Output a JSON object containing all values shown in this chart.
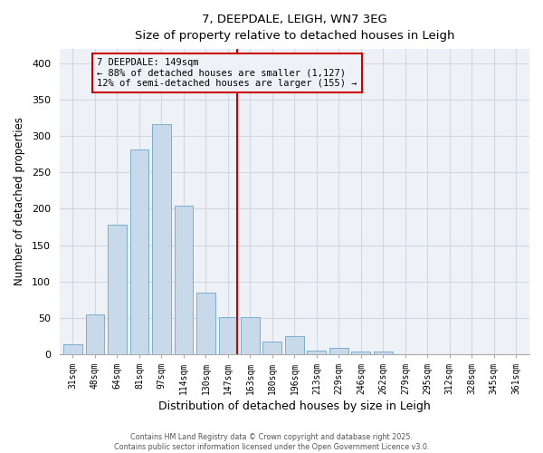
{
  "title": "7, DEEPDALE, LEIGH, WN7 3EG",
  "subtitle": "Size of property relative to detached houses in Leigh",
  "xlabel": "Distribution of detached houses by size in Leigh",
  "ylabel": "Number of detached properties",
  "bar_labels": [
    "31sqm",
    "48sqm",
    "64sqm",
    "81sqm",
    "97sqm",
    "114sqm",
    "130sqm",
    "147sqm",
    "163sqm",
    "180sqm",
    "196sqm",
    "213sqm",
    "229sqm",
    "246sqm",
    "262sqm",
    "279sqm",
    "295sqm",
    "312sqm",
    "328sqm",
    "345sqm",
    "361sqm"
  ],
  "bar_values": [
    13,
    54,
    178,
    282,
    317,
    204,
    84,
    51,
    51,
    17,
    25,
    5,
    9,
    4,
    3,
    0,
    0,
    0,
    0,
    0,
    0
  ],
  "bar_color": "#c8daea",
  "bar_edge_color": "#7aaed0",
  "vline_color": "#cc0000",
  "annotation_text": "7 DEEPDALE: 149sqm\n← 88% of detached houses are smaller (1,127)\n12% of semi-detached houses are larger (155) →",
  "annotation_box_edge_color": "#cc0000",
  "ylim": [
    0,
    420
  ],
  "yticks": [
    0,
    50,
    100,
    150,
    200,
    250,
    300,
    350,
    400
  ],
  "grid_color": "#d0d8e4",
  "background_color": "#ffffff",
  "plot_bg_color": "#eef2f7",
  "footer_line1": "Contains HM Land Registry data © Crown copyright and database right 2025.",
  "footer_line2": "Contains public sector information licensed under the Open Government Licence v3.0."
}
